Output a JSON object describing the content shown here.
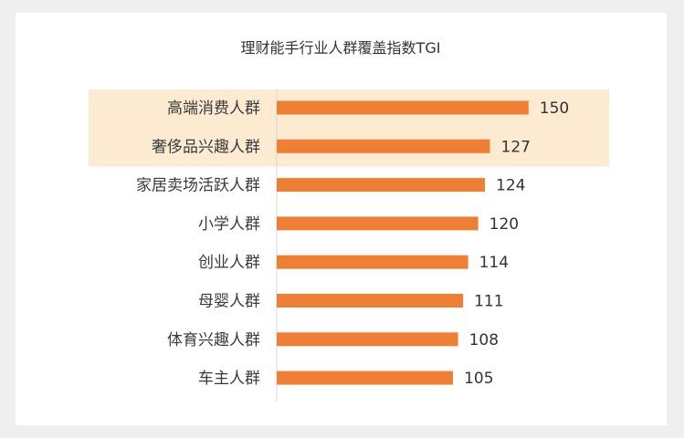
{
  "chart_data": {
    "type": "bar",
    "orientation": "horizontal",
    "title": "理财能手行业人群覆盖指数TGI",
    "categories": [
      "高端消费人群",
      "奢侈品兴趣人群",
      "家居卖场活跃人群",
      "小学人群",
      "创业人群",
      "母婴人群",
      "体育兴趣人群",
      "车主人群"
    ],
    "values": [
      150,
      127,
      124,
      120,
      114,
      111,
      108,
      105
    ],
    "value_labels": [
      "150",
      "127",
      "124",
      "120",
      "114",
      "111",
      "108",
      "105"
    ],
    "highlighted_categories": [
      "高端消费人群",
      "奢侈品兴趣人群"
    ],
    "xlim": [
      0,
      155
    ],
    "grid": false,
    "legend": "none",
    "colors": {
      "bar": "#ee7f35",
      "highlight": "#fcebd1",
      "axis": "#d9d9d9",
      "background": "#efefef",
      "card": "#ffffff"
    }
  }
}
